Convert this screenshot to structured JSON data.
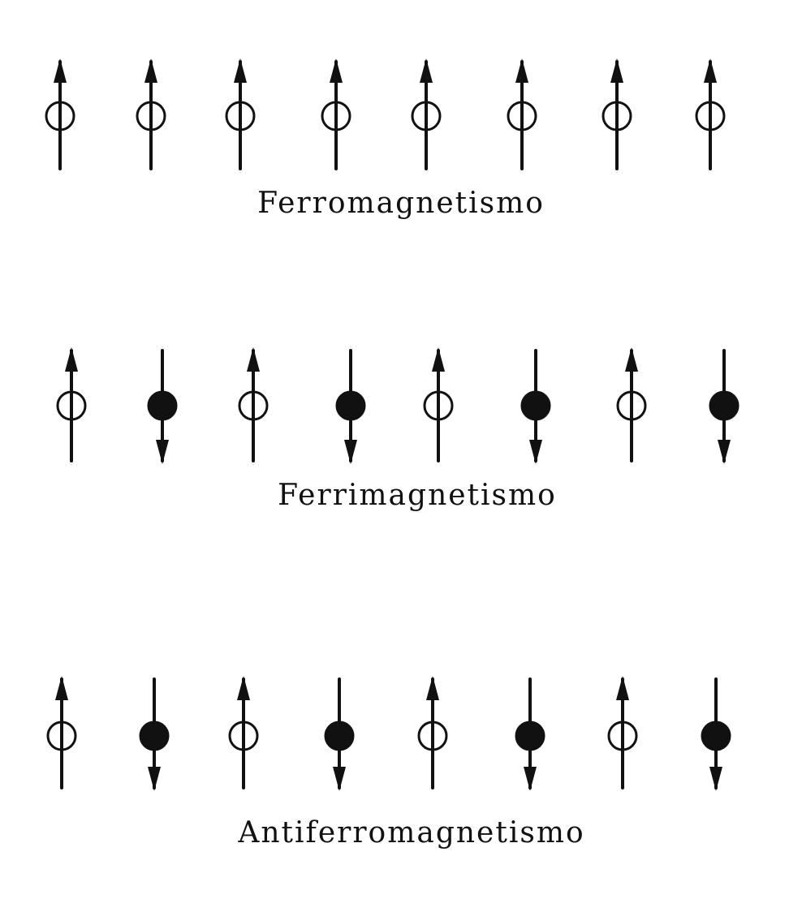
{
  "diagram": {
    "ink_color": "#111111",
    "background": "#ffffff",
    "rows": [
      {
        "id": "ferro",
        "caption": "Ferromagnetismo",
        "spins": [
          {
            "dir": "up",
            "filled": false
          },
          {
            "dir": "up",
            "filled": false
          },
          {
            "dir": "up",
            "filled": false
          },
          {
            "dir": "up",
            "filled": false
          },
          {
            "dir": "up",
            "filled": false
          },
          {
            "dir": "up",
            "filled": false
          },
          {
            "dir": "up",
            "filled": false
          },
          {
            "dir": "up",
            "filled": false
          }
        ]
      },
      {
        "id": "ferri",
        "caption": "Ferrimagnetismo",
        "spins": [
          {
            "dir": "up",
            "filled": false
          },
          {
            "dir": "down",
            "filled": true
          },
          {
            "dir": "up",
            "filled": false
          },
          {
            "dir": "down",
            "filled": true
          },
          {
            "dir": "up",
            "filled": false
          },
          {
            "dir": "down",
            "filled": true
          },
          {
            "dir": "up",
            "filled": false
          },
          {
            "dir": "down",
            "filled": true
          }
        ]
      },
      {
        "id": "antiferro",
        "caption": "Antiferromagnetismo",
        "spins": [
          {
            "dir": "up",
            "filled": false
          },
          {
            "dir": "down",
            "filled": true
          },
          {
            "dir": "up",
            "filled": false
          },
          {
            "dir": "down",
            "filled": true
          },
          {
            "dir": "up",
            "filled": false
          },
          {
            "dir": "down",
            "filled": true
          },
          {
            "dir": "up",
            "filled": false
          },
          {
            "dir": "down",
            "filled": true
          }
        ]
      }
    ]
  }
}
